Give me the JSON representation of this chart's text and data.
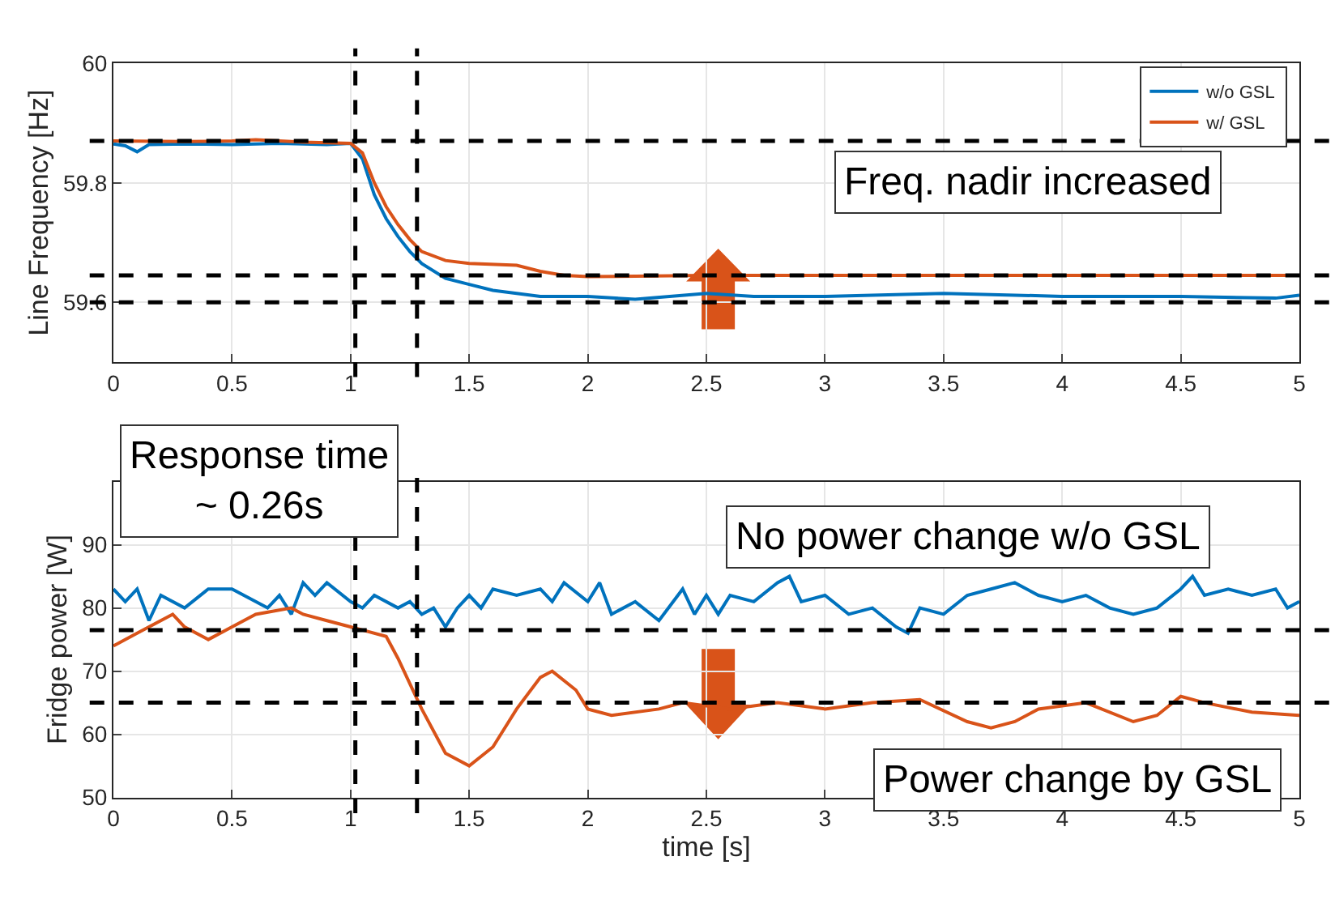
{
  "chart_data": [
    {
      "type": "line",
      "ylabel": "Line Frequency [Hz]",
      "xlim": [
        0,
        5
      ],
      "xticks": [
        0,
        0.5,
        1,
        1.5,
        2,
        2.5,
        3,
        3.5,
        4,
        4.5,
        5
      ],
      "ylim": [
        59.5,
        60
      ],
      "yticks": [
        59.6,
        59.8,
        60
      ],
      "grid": true,
      "legend": "top right",
      "series": [
        {
          "name": "w/o GSL",
          "color": "#0072bd",
          "x": [
            0,
            0.05,
            0.1,
            0.15,
            0.3,
            0.5,
            0.7,
            0.9,
            1.0,
            1.05,
            1.1,
            1.15,
            1.2,
            1.25,
            1.3,
            1.4,
            1.5,
            1.6,
            1.7,
            1.8,
            2.0,
            2.2,
            2.5,
            2.7,
            3.0,
            3.5,
            4.0,
            4.5,
            4.9,
            5.0
          ],
          "values": [
            59.865,
            59.862,
            59.852,
            59.864,
            59.865,
            59.864,
            59.866,
            59.864,
            59.866,
            59.84,
            59.78,
            59.74,
            59.71,
            59.685,
            59.665,
            59.64,
            59.63,
            59.62,
            59.615,
            59.61,
            59.61,
            59.605,
            59.615,
            59.61,
            59.61,
            59.615,
            59.61,
            59.61,
            59.607,
            59.612
          ]
        },
        {
          "name": "w/ GSL",
          "color": "#d95319",
          "x": [
            0,
            0.3,
            0.5,
            0.6,
            0.8,
            1.0,
            1.05,
            1.1,
            1.15,
            1.2,
            1.25,
            1.3,
            1.4,
            1.5,
            1.7,
            1.8,
            1.9,
            2.0,
            2.5,
            3.0,
            4.0,
            5.0
          ],
          "values": [
            59.87,
            59.869,
            59.87,
            59.872,
            59.868,
            59.866,
            59.85,
            59.8,
            59.76,
            59.73,
            59.705,
            59.685,
            59.67,
            59.665,
            59.662,
            59.652,
            59.645,
            59.643,
            59.645,
            59.645,
            59.645,
            59.645
          ]
        }
      ],
      "ref_lines": [
        {
          "axis": "y",
          "value": 59.87,
          "color": "#000000",
          "line_style": "dashed"
        },
        {
          "axis": "y",
          "value": 59.645,
          "color": "#000000",
          "line_style": "dashed"
        },
        {
          "axis": "y",
          "value": 59.6,
          "color": "#000000",
          "line_style": "dashed"
        },
        {
          "axis": "x",
          "value": 1.02,
          "color": "#000000",
          "line_style": "dashed"
        },
        {
          "axis": "x",
          "value": 1.28,
          "color": "#000000",
          "line_style": "dashed"
        }
      ],
      "annotations": [
        "Freq. nadir increased"
      ]
    },
    {
      "type": "line",
      "xlabel": "time [s]",
      "ylabel": "Fridge power [W]",
      "xlim": [
        0,
        5
      ],
      "xticks": [
        0,
        0.5,
        1,
        1.5,
        2,
        2.5,
        3,
        3.5,
        4,
        4.5,
        5
      ],
      "ylim": [
        50,
        100
      ],
      "yticks": [
        50,
        60,
        70,
        80,
        90
      ],
      "grid": true,
      "series": [
        {
          "color": "#0072bd",
          "x": [
            0,
            0.05,
            0.1,
            0.15,
            0.2,
            0.3,
            0.4,
            0.5,
            0.6,
            0.65,
            0.7,
            0.75,
            0.8,
            0.85,
            0.9,
            1.0,
            1.05,
            1.1,
            1.2,
            1.25,
            1.3,
            1.35,
            1.4,
            1.45,
            1.5,
            1.55,
            1.6,
            1.7,
            1.8,
            1.85,
            1.9,
            2.0,
            2.05,
            2.1,
            2.2,
            2.3,
            2.4,
            2.45,
            2.5,
            2.55,
            2.6,
            2.7,
            2.8,
            2.85,
            2.9,
            3.0,
            3.1,
            3.2,
            3.3,
            3.35,
            3.4,
            3.5,
            3.6,
            3.7,
            3.8,
            3.9,
            4.0,
            4.1,
            4.2,
            4.3,
            4.4,
            4.5,
            4.55,
            4.6,
            4.7,
            4.8,
            4.9,
            4.95,
            5.0
          ],
          "values": [
            83,
            81,
            83,
            78,
            82,
            80,
            83,
            83,
            81,
            80,
            82,
            79,
            84,
            82,
            84,
            81,
            80,
            82,
            80,
            81,
            79,
            80,
            77,
            80,
            82,
            80,
            83,
            82,
            83,
            81,
            84,
            81,
            84,
            79,
            81,
            78,
            83,
            79,
            82,
            79,
            82,
            81,
            84,
            85,
            81,
            82,
            79,
            80,
            77,
            76,
            80,
            79,
            82,
            83,
            84,
            82,
            81,
            82,
            80,
            79,
            80,
            83,
            85,
            82,
            83,
            82,
            83,
            80,
            81
          ]
        },
        {
          "color": "#d95319",
          "x": [
            0,
            0.1,
            0.25,
            0.3,
            0.4,
            0.5,
            0.6,
            0.75,
            0.8,
            0.9,
            1.0,
            1.05,
            1.15,
            1.2,
            1.3,
            1.4,
            1.5,
            1.6,
            1.7,
            1.8,
            1.85,
            1.95,
            2.0,
            2.1,
            2.3,
            2.4,
            2.6,
            2.8,
            3.0,
            3.2,
            3.4,
            3.6,
            3.7,
            3.8,
            3.9,
            4.1,
            4.3,
            4.4,
            4.5,
            4.6,
            4.8,
            5.0
          ],
          "values": [
            74,
            76,
            79,
            77,
            75,
            77,
            79,
            80,
            79,
            78,
            77,
            76.5,
            75.5,
            72,
            64,
            57,
            55,
            58,
            64,
            69,
            70,
            67,
            64,
            63,
            64,
            65,
            64,
            65,
            64,
            65,
            65.5,
            62,
            61,
            62,
            64,
            65,
            62,
            63,
            66,
            65,
            63.5,
            63
          ]
        }
      ],
      "ref_lines": [
        {
          "axis": "y",
          "value": 76.5,
          "color": "#000000",
          "line_style": "dashed"
        },
        {
          "axis": "y",
          "value": 65,
          "color": "#000000",
          "line_style": "dashed"
        },
        {
          "axis": "x",
          "value": 1.02,
          "color": "#000000",
          "line_style": "dashed"
        },
        {
          "axis": "x",
          "value": 1.28,
          "color": "#000000",
          "line_style": "dashed"
        }
      ],
      "annotations": [
        "Response time\n~ 0.26s",
        "No power change w/o GSL",
        "Power change by GSL"
      ]
    }
  ]
}
